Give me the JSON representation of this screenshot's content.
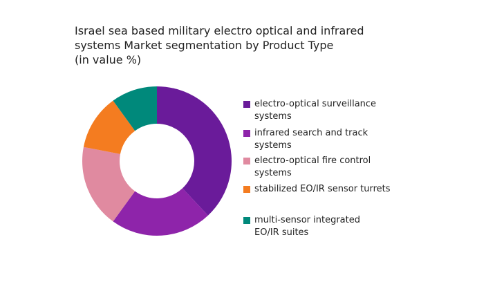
{
  "chart_data": {
    "type": "donut",
    "title": [
      "Israel sea based military electro optical and infrared",
      "systems Market segmentation by Product Type",
      "(in value %)"
    ],
    "categories": [
      "electro-optical surveillance systems",
      "infrared search and track systems",
      "electro-optical fire control systems",
      "stabilized EO/IR sensor turrets",
      "multi-sensor integrated EO/IR suites"
    ],
    "values": [
      38,
      22,
      18,
      12,
      10
    ],
    "colors": [
      "#6a1b9a",
      "#8e24aa",
      "#e08aa0",
      "#f47c20",
      "#00897b"
    ],
    "legend": "right"
  }
}
